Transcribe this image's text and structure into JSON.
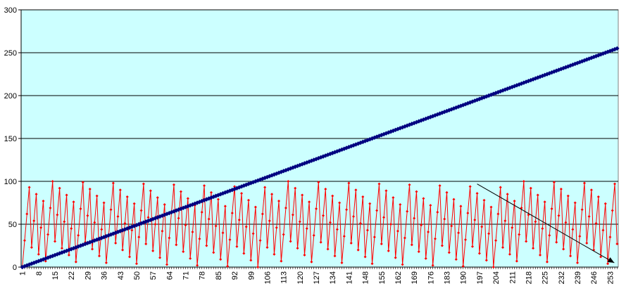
{
  "chart_data": {
    "type": "line",
    "title": "",
    "xlabel": "",
    "ylabel": "",
    "x_range": [
      1,
      256
    ],
    "ylim": [
      0,
      300
    ],
    "y_ticks": [
      0,
      50,
      100,
      150,
      200,
      250,
      300
    ],
    "x_tick_labels": [
      "1",
      "8",
      "15",
      "22",
      "29",
      "36",
      "43",
      "50",
      "57",
      "64",
      "71",
      "78",
      "85",
      "92",
      "99",
      "106",
      "113",
      "120",
      "127",
      "134",
      "141",
      "148",
      "155",
      "162",
      "169",
      "176",
      "183",
      "190",
      "197",
      "204",
      "211",
      "218",
      "225",
      "232",
      "239",
      "246",
      "253"
    ],
    "x_ticks": [
      1,
      8,
      15,
      22,
      29,
      36,
      43,
      50,
      57,
      64,
      71,
      78,
      85,
      92,
      99,
      106,
      113,
      120,
      127,
      134,
      141,
      148,
      155,
      162,
      169,
      176,
      183,
      190,
      197,
      204,
      211,
      218,
      225,
      232,
      239,
      246,
      253
    ],
    "grid": "horizontal",
    "legend": "none",
    "plot_background": "#ccffff",
    "series": [
      {
        "color": "#000080",
        "marker": "diamond",
        "formula": "y = x - 1",
        "values_start": 0,
        "values_end": 255,
        "count": 256
      },
      {
        "color": "#ff0000",
        "marker": "diamond",
        "formula": "y = ((x - 1) * 31) mod 101",
        "count": 256
      }
    ],
    "annotations": [
      {
        "type": "arrow",
        "from": [
          196,
          97
        ],
        "to": [
          256,
          5
        ],
        "color": "#000000"
      }
    ]
  }
}
